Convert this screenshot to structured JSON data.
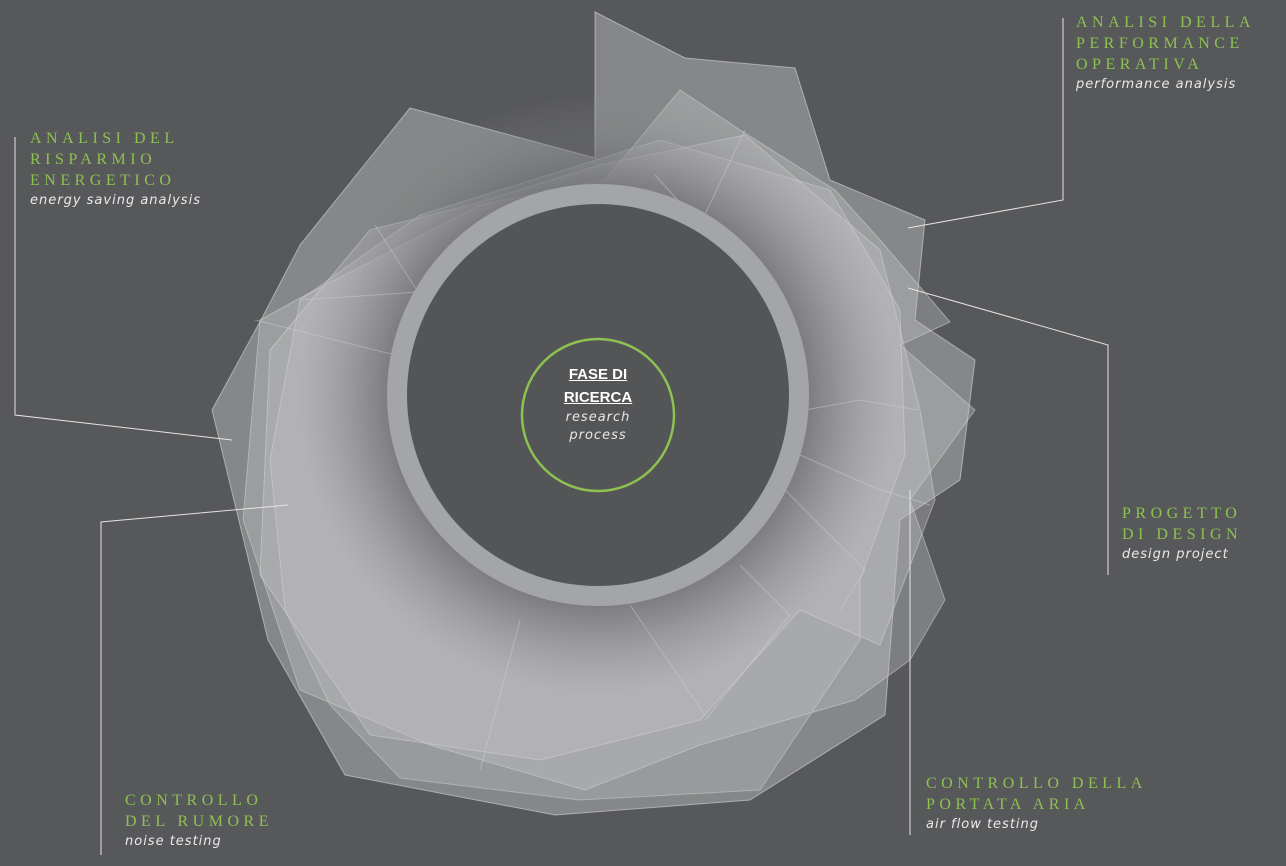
{
  "center": {
    "title_line1": "FASE DI",
    "title_line2": "RICERCA",
    "subtitle_line1": "research",
    "subtitle_line2": "process"
  },
  "steps": [
    {
      "id": "performance",
      "title": "ANALISI DELLA\nPERFORMANCE\nOPERATIVA",
      "subtitle": "performance analysis"
    },
    {
      "id": "energy",
      "title": "ANALISI DEL\nRISPARMIO\nENERGETICO",
      "subtitle": "energy saving analysis"
    },
    {
      "id": "design",
      "title": "PROGETTO\nDI DESIGN",
      "subtitle": "design project"
    },
    {
      "id": "airflow",
      "title": "CONTROLLO DELLA\nPORTATA ARIA",
      "subtitle": "air flow testing"
    },
    {
      "id": "noise",
      "title": "CONTROLLO\nDEL RUMORE",
      "subtitle": "noise testing"
    }
  ],
  "colors": {
    "background": "#57585a",
    "accent_green": "#8dc152",
    "ring": "#a4a5a8",
    "shard": "#c6c7c9"
  }
}
